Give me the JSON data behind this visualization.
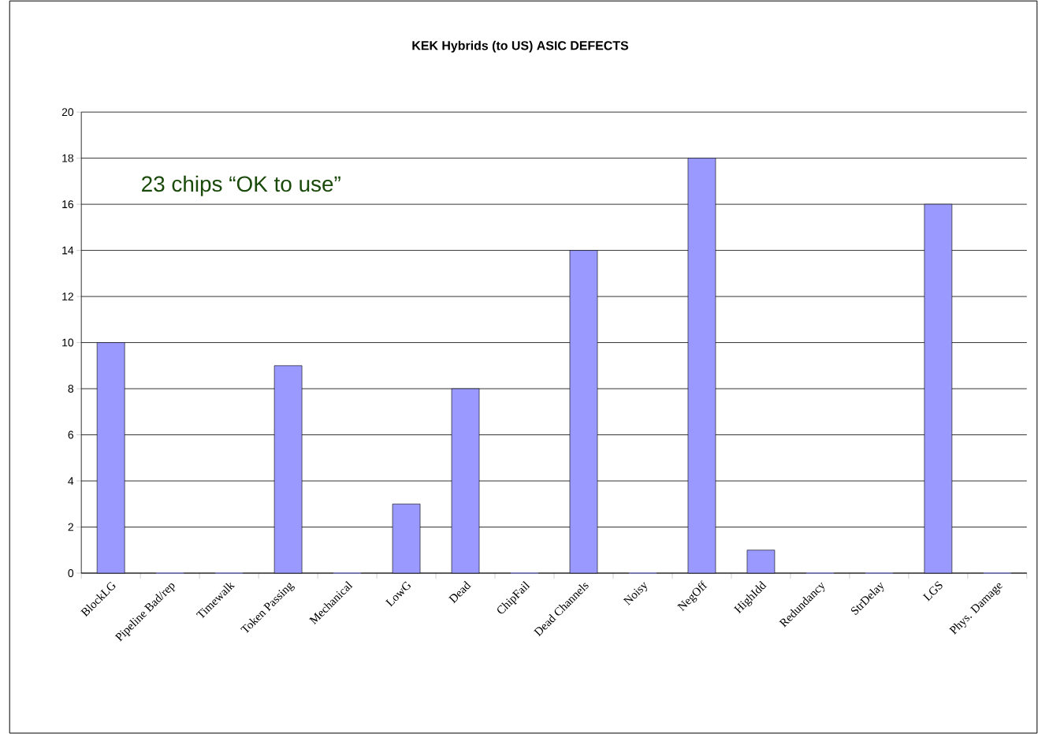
{
  "chart_data": {
    "type": "bar",
    "title": "KEK Hybrids (to US) ASIC DEFECTS",
    "categories": [
      "BlockLG",
      "Pipeline Bad/rep",
      "Timewalk",
      "Token Passing",
      "Mechanical",
      "LowG",
      "Dead",
      "ChipFail",
      "Dead Channels",
      "Noisy",
      "NegOff",
      "HighIdd",
      "Redundancy",
      "StrDelay",
      "LGS",
      "Phys. Damage"
    ],
    "values": [
      10,
      0,
      0,
      9,
      0,
      3,
      8,
      0,
      14,
      0,
      18,
      1,
      0,
      0,
      16,
      0
    ],
    "color": "#9999ff",
    "ylim": [
      0,
      20
    ],
    "yticks": [
      0,
      2,
      4,
      6,
      8,
      10,
      12,
      14,
      16,
      18,
      20
    ],
    "grid": "y",
    "annotations": [
      "23 chips “OK to use”"
    ]
  }
}
